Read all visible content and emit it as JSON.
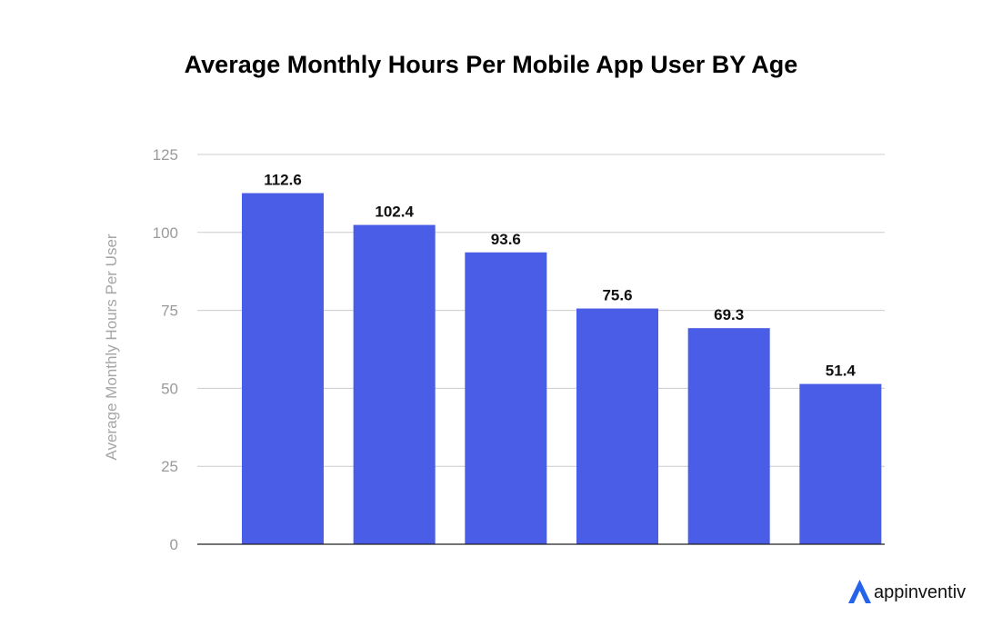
{
  "chart_data": {
    "type": "bar",
    "title": "Average Monthly Hours Per Mobile App User BY Age",
    "ylabel": "Average Monthly Hours Per User",
    "xlabel": "",
    "ylim": [
      0,
      125
    ],
    "yticks": [
      0,
      25,
      50,
      75,
      100,
      125
    ],
    "grid": true,
    "values": [
      112.6,
      102.4,
      93.6,
      75.6,
      69.3,
      51.4
    ],
    "data_labels": [
      "112.6",
      "102.4",
      "93.6",
      "75.6",
      "69.3",
      "51.4"
    ],
    "bar_color": "#4a5de6",
    "grid_color": "#cccccc",
    "axis_color": "#222222"
  },
  "brand": {
    "name": "appinventiv",
    "color": "#2563eb"
  }
}
